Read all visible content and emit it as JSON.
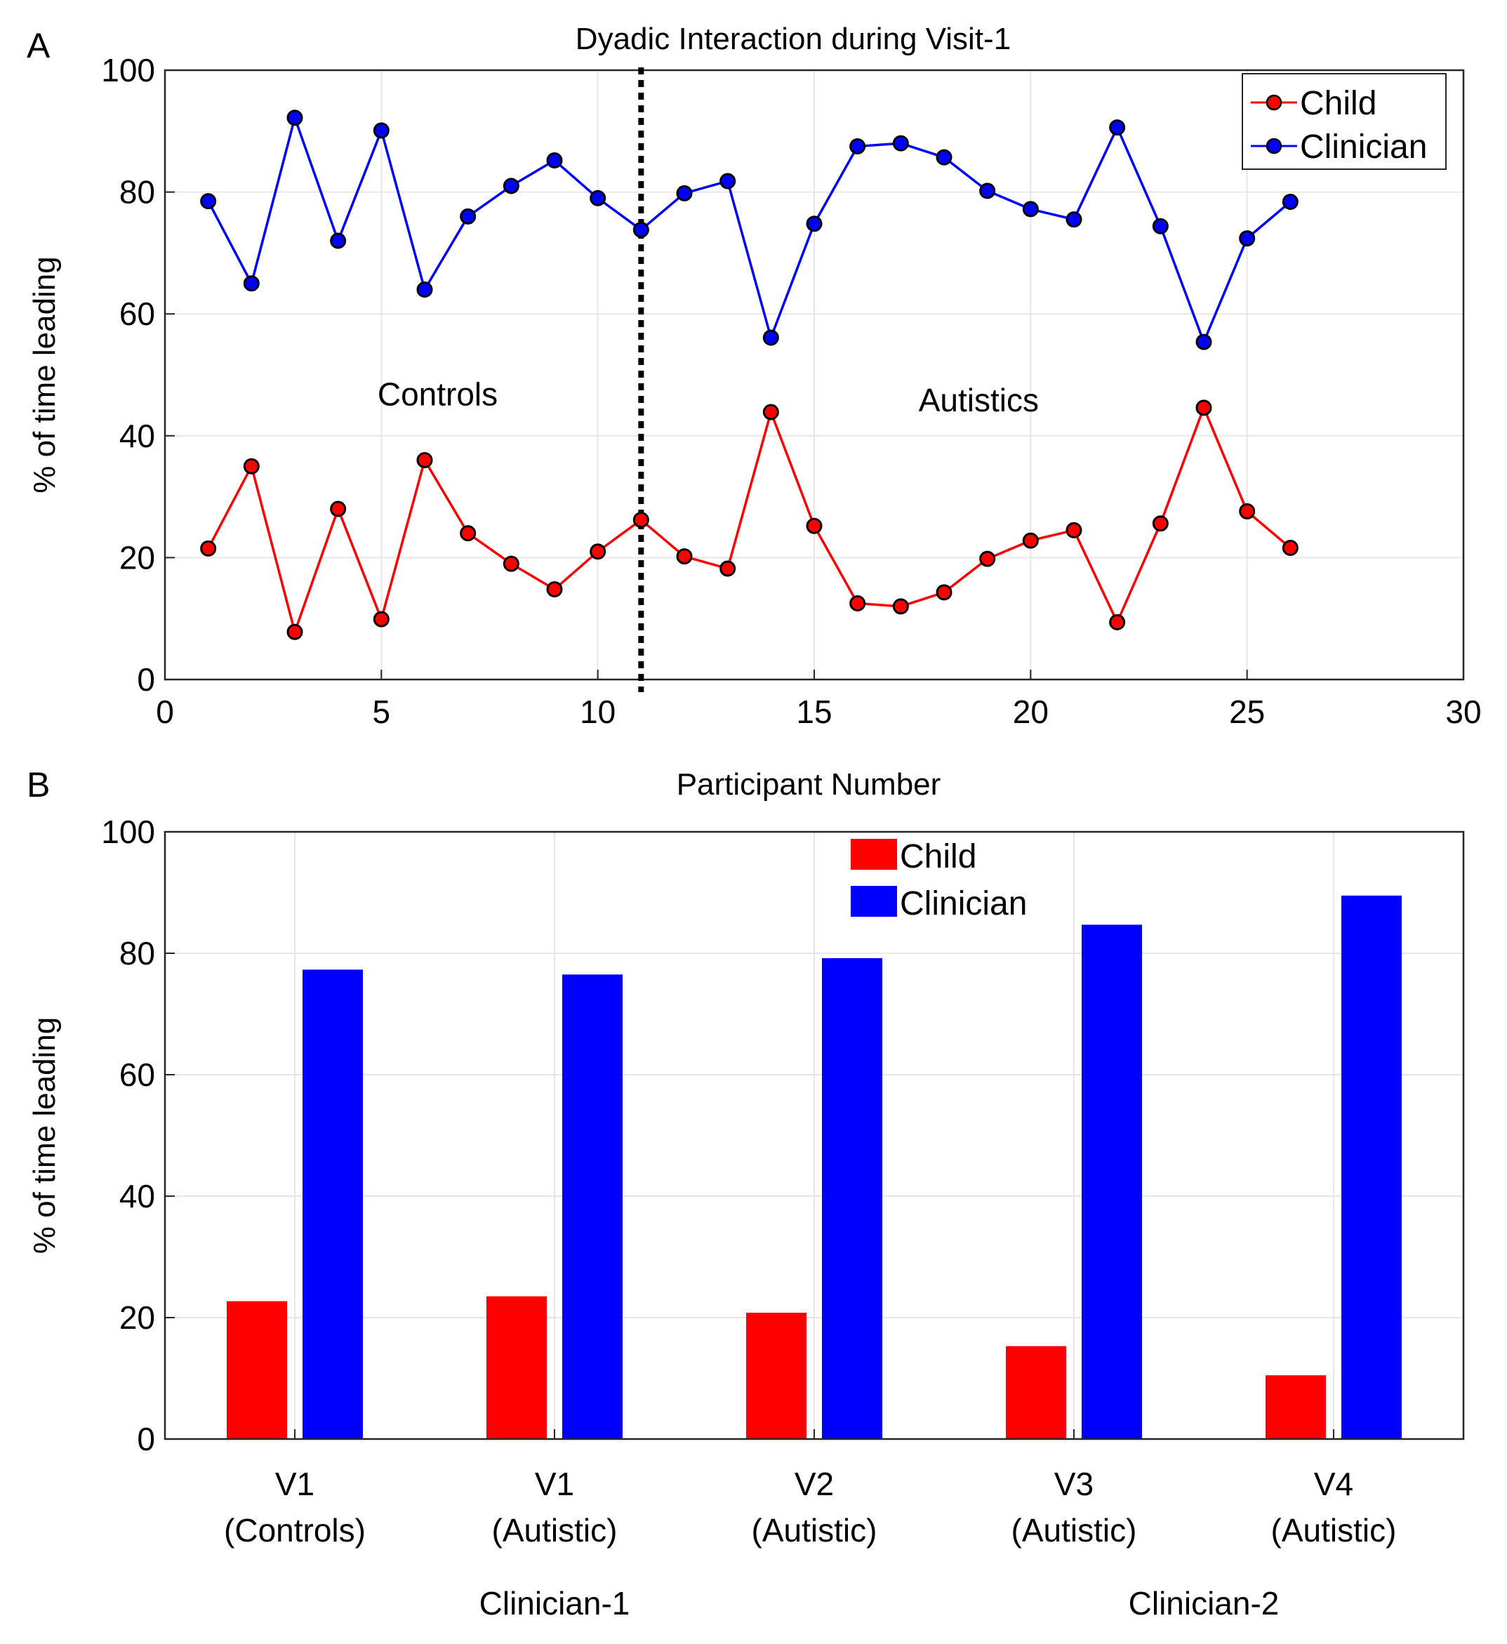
{
  "chart_data": [
    {
      "type": "line",
      "panel_label": "A",
      "title": "Dyadic Interaction during Visit-1",
      "xlabel": "Participant Number",
      "ylabel": "% of time leading",
      "xlim": [
        0,
        30
      ],
      "ylim": [
        0,
        100
      ],
      "xticks": [
        0,
        5,
        10,
        15,
        20,
        25,
        30
      ],
      "yticks": [
        0,
        20,
        40,
        60,
        80,
        100
      ],
      "grid": true,
      "legend_position": "top-right",
      "x": [
        1,
        2,
        3,
        4,
        5,
        6,
        7,
        8,
        9,
        10,
        11,
        12,
        13,
        14,
        15,
        16,
        17,
        18,
        19,
        20,
        21,
        22,
        23,
        24,
        25,
        26
      ],
      "series": [
        {
          "name": "Child",
          "color": "#ff0000",
          "marker_color": "#ff0000",
          "values": [
            21.5,
            35,
            7.8,
            28,
            9.9,
            36,
            24,
            19,
            14.8,
            21,
            26.2,
            20.2,
            18.2,
            43.9,
            25.2,
            12.5,
            12,
            14.3,
            19.8,
            22.8,
            24.5,
            9.4,
            25.6,
            44.6,
            27.6,
            21.6
          ]
        },
        {
          "name": "Clinician",
          "color": "#0000ff",
          "marker_color": "#0000ff",
          "values": [
            78.5,
            65,
            92.2,
            72,
            90.1,
            64,
            76,
            81,
            85.2,
            79,
            73.8,
            79.8,
            81.8,
            56.1,
            74.8,
            87.5,
            88,
            85.7,
            80.2,
            77.2,
            75.5,
            90.6,
            74.4,
            55.4,
            72.4,
            78.4
          ]
        }
      ],
      "divider_x": 11,
      "annotations": [
        {
          "text": "Controls",
          "x": 6.3,
          "y": 45
        },
        {
          "text": "Autistics",
          "x": 18.8,
          "y": 44
        }
      ]
    },
    {
      "type": "bar",
      "panel_label": "B",
      "ylabel": "% of time leading",
      "ylim": [
        0,
        100
      ],
      "yticks": [
        0,
        20,
        40,
        60,
        80,
        100
      ],
      "grid": true,
      "legend_position": "top-center",
      "categories": [
        {
          "line1": "V1",
          "line2": "(Controls)"
        },
        {
          "line1": "V1",
          "line2": "(Autistic)"
        },
        {
          "line1": "V2",
          "line2": "(Autistic)"
        },
        {
          "line1": "V3",
          "line2": "(Autistic)"
        },
        {
          "line1": "V4",
          "line2": "(Autistic)"
        }
      ],
      "series": [
        {
          "name": "Child",
          "color": "#ff0000",
          "values": [
            22.7,
            23.5,
            20.8,
            15.3,
            10.5
          ]
        },
        {
          "name": "Clinician",
          "color": "#0000ff",
          "values": [
            77.3,
            76.5,
            79.2,
            84.7,
            89.5
          ]
        }
      ],
      "groups": [
        {
          "label": "Clinician-1",
          "categories": [
            0,
            1,
            2
          ]
        },
        {
          "label": "Clinician-2",
          "categories": [
            3,
            4
          ]
        }
      ]
    }
  ]
}
